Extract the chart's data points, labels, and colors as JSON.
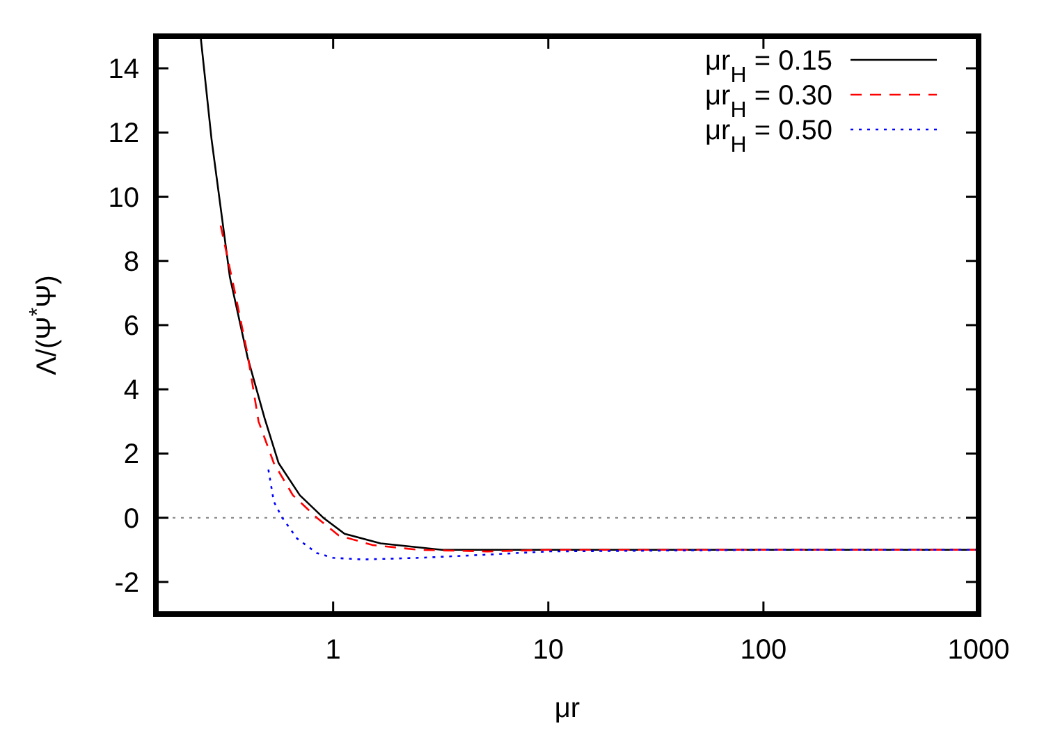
{
  "chart_data": {
    "type": "line",
    "xlabel": "μr",
    "ylabel": "Λ/(Ψ$^{*}$Ψ)",
    "log": "x",
    "xlim": [
      0.15,
      1000
    ],
    "xticks": [
      1,
      10,
      100,
      1000
    ],
    "ylim": [
      -3,
      15
    ],
    "yticks": [
      -2,
      0,
      2,
      4,
      6,
      8,
      10,
      12,
      14
    ],
    "legend": "top right",
    "grid": false,
    "ref_lines": [
      {
        "axis": "y",
        "value": 0,
        "label": null,
        "color": "#808080",
        "line_style": "dotted"
      }
    ],
    "series": [
      {
        "name": "μr$_{H}$ = 0.15",
        "color": "#000000",
        "line_style": "solid",
        "x": [
          0.242,
          0.272,
          0.331,
          0.4,
          0.48,
          0.558,
          0.7,
          0.9,
          1.13,
          1.66,
          3.2,
          10,
          100,
          1000
        ],
        "values": [
          15,
          11.8,
          7.5,
          5.0,
          3.1,
          1.7,
          0.7,
          0,
          -0.5,
          -0.8,
          -1.0,
          -1.0,
          -1.0,
          -1.0
        ]
      },
      {
        "name": "μr$_{H}$ = 0.30",
        "color": "#ff0000",
        "line_style": "dashed",
        "x": [
          0.3,
          0.35,
          0.4,
          0.45,
          0.53,
          0.65,
          0.84,
          1.06,
          1.52,
          2.5,
          5.2,
          10,
          100,
          1000
        ],
        "values": [
          9.1,
          7.0,
          5.1,
          3.0,
          1.7,
          0.7,
          0,
          -0.55,
          -0.85,
          -1.0,
          -1.05,
          -1.0,
          -1.0,
          -1.0
        ]
      },
      {
        "name": "μr$_{H}$ = 0.50",
        "color": "#0000ff",
        "line_style": "dotted",
        "x": [
          0.5,
          0.53,
          0.58,
          0.68,
          0.84,
          1.0,
          1.37,
          2.5,
          5.2,
          10,
          100,
          1000
        ],
        "values": [
          1.5,
          0.5,
          0,
          -0.65,
          -1.1,
          -1.25,
          -1.3,
          -1.25,
          -1.15,
          -1.05,
          -1.0,
          -1.0
        ]
      }
    ]
  }
}
